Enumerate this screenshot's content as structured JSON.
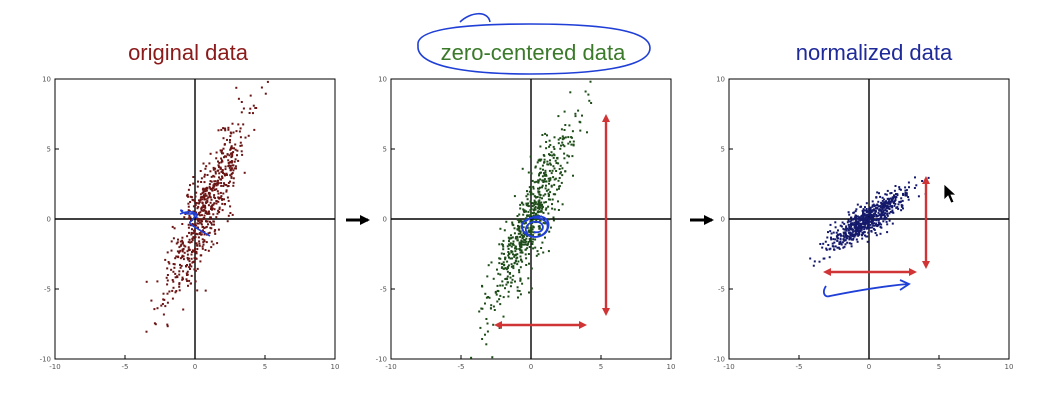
{
  "chart_data": [
    {
      "type": "scatter",
      "title": "original data",
      "title_color": "#8b1a1a",
      "point_color": "#6b1515",
      "xlim": [
        -10,
        10
      ],
      "ylim": [
        -10,
        10
      ],
      "x_ticks": [
        "-10",
        "-5",
        "0",
        "5",
        "10"
      ],
      "y_ticks": [
        "10",
        "5",
        "0",
        "-5",
        "-10"
      ],
      "grid": false,
      "spread": {
        "mean_x": 0.8,
        "mean_y": 0.7,
        "major_sd": 3.6,
        "minor_sd": 0.65,
        "angle_deg": 68,
        "points": 650
      }
    },
    {
      "type": "scatter",
      "title": "zero-centered data",
      "title_color": "#3b7a2a",
      "point_color": "#1f4d1a",
      "xlim": [
        -10,
        10
      ],
      "ylim": [
        -10,
        10
      ],
      "x_ticks": [
        "-10",
        "-5",
        "0",
        "5",
        "10"
      ],
      "y_ticks": [
        "10",
        "5",
        "0",
        "-5",
        "-10"
      ],
      "grid": false,
      "spread": {
        "mean_x": 0,
        "mean_y": 0,
        "major_sd": 3.6,
        "minor_sd": 0.65,
        "angle_deg": 68,
        "points": 650
      }
    },
    {
      "type": "scatter",
      "title": "normalized data",
      "title_color": "#1f2a9a",
      "point_color": "#14196b",
      "xlim": [
        -10,
        10
      ],
      "ylim": [
        -10,
        10
      ],
      "x_ticks": [
        "-10",
        "-5",
        "0",
        "5",
        "10"
      ],
      "y_ticks": [
        "10",
        "5",
        "0",
        "-5",
        "-10"
      ],
      "grid": false,
      "spread": {
        "mean_x": 0,
        "mean_y": 0,
        "major_sd": 1.7,
        "minor_sd": 0.45,
        "angle_deg": 35,
        "points": 650
      }
    }
  ],
  "colors": {
    "annotation_red": "#d03434",
    "ink_blue": "#1f3fd6",
    "axis": "#000000"
  },
  "icons": {
    "flow_arrow": "right-arrow",
    "cursor": "mouse-pointer"
  }
}
